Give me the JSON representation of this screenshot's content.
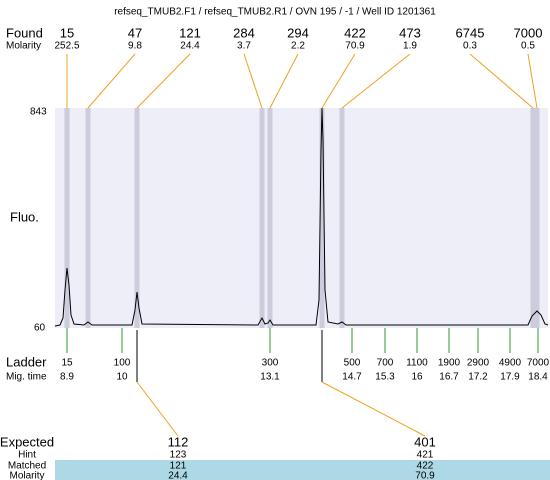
{
  "title": "refseq_TMUB2.F1 / refseq_TMUB2.R1 / OVN 195 / -1 / Well ID 1201361",
  "found": {
    "label": "Found",
    "values": [
      "15",
      "47",
      "121",
      "284",
      "294",
      "422",
      "473",
      "6745",
      "7000"
    ]
  },
  "molarity": {
    "label": "Molarity",
    "values": [
      "252.5",
      "9.8",
      "24.4",
      "3.7",
      "2.2",
      "70.9",
      "1.9",
      "0.3",
      "0.5"
    ]
  },
  "axis": {
    "label": "Fluo.",
    "max": "843",
    "min": "60"
  },
  "ladder": {
    "label": "Ladder",
    "sizes": [
      "15",
      "100",
      "300",
      "500",
      "700",
      "1100",
      "1900",
      "2900",
      "4900",
      "7000"
    ]
  },
  "mig_time": {
    "label": "Mig. time",
    "values": [
      "8.9",
      "10",
      "13.1",
      "14.7",
      "15.3",
      "16",
      "16.7",
      "17.2",
      "17.9",
      "18.4"
    ]
  },
  "expected": {
    "label": "Expected",
    "values": [
      "112",
      "401"
    ]
  },
  "hint": {
    "label": "Hint",
    "values": [
      "123",
      "421"
    ]
  },
  "matched": {
    "label": "Matched",
    "values": [
      "121",
      "422"
    ]
  },
  "matched_molarity": {
    "label": "Molarity",
    "values": [
      "24.4",
      "70.9"
    ]
  }
}
